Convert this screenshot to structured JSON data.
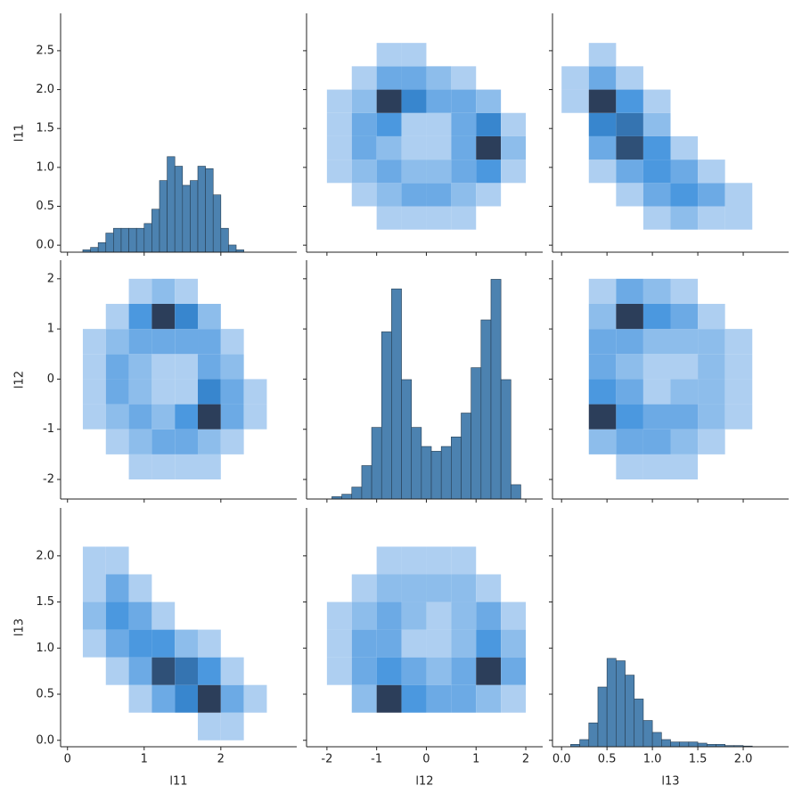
{
  "chart_data": {
    "type": "pairgrid",
    "cmap": [
      "#cfe1f7",
      "#3a8fdc",
      "#2c3e5a"
    ],
    "hist_color": "#4c82b0",
    "hist_edge": "#263d52",
    "variables": [
      {
        "name": "l11",
        "xlim": [
          -0.09,
          2.99
        ],
        "xticks": [
          0,
          1,
          2
        ],
        "ylim": [
          -0.09,
          2.98
        ],
        "yticks": [
          {
            "value": 0,
            "label": "0.0"
          },
          0.5,
          {
            "value": 1,
            "label": "1.0"
          },
          1.5,
          {
            "value": 2,
            "label": "2.0"
          },
          2.5
        ]
      },
      {
        "name": "l12",
        "xlim": [
          -2.41,
          2.34
        ],
        "xticks": [
          -2,
          -1,
          0,
          1,
          2
        ],
        "ylim": [
          -2.39,
          2.37
        ],
        "yticks": [
          -2,
          -1,
          0,
          1,
          2
        ]
      },
      {
        "name": "l13",
        "xlim": [
          -0.1,
          2.5
        ],
        "xticks": [
          {
            "value": 0,
            "label": "0.0"
          },
          0.5,
          {
            "value": 1,
            "label": "1.0"
          },
          1.5,
          {
            "value": 2,
            "label": "2.0"
          }
        ],
        "ylim": [
          -0.07,
          2.52
        ],
        "yticks": [
          {
            "value": 0,
            "label": "0.0"
          },
          0.5,
          {
            "value": 1,
            "label": "1.0"
          },
          1.5,
          {
            "value": 2,
            "label": "2.0"
          }
        ]
      }
    ],
    "panels": [
      [
        {
          "type": "histogram",
          "countlim": [
            0,
            100
          ],
          "bins": [
            0.2,
            0.3,
            0.4,
            0.5,
            0.6,
            0.7,
            0.8,
            0.9,
            1.0,
            1.1,
            1.2,
            1.3,
            1.4,
            1.5,
            1.6,
            1.7,
            1.8,
            1.9,
            2.0,
            2.1,
            2.2,
            2.3
          ],
          "counts": [
            1,
            2,
            4,
            8,
            10,
            10,
            10,
            10,
            12,
            18,
            30,
            40,
            36,
            28,
            30,
            36,
            35,
            24,
            10,
            3,
            1
          ]
        },
        {
          "type": "hist2d",
          "xbins": [
            -2,
            -1.5,
            -1,
            -0.5,
            0,
            0.5,
            1,
            1.5,
            2
          ],
          "ybins": [
            0.2,
            0.5,
            0.8,
            1.1,
            1.4,
            1.7,
            2.0,
            2.3,
            2.6
          ],
          "counts": [
            [
              0,
              0,
              1,
              1,
              1,
              1,
              0,
              0
            ],
            [
              0,
              1,
              2,
              3,
              3,
              2,
              1,
              0
            ],
            [
              1,
              2,
              3,
              2,
              2,
              3,
              4,
              1
            ],
            [
              1,
              3,
              2,
              1,
              1,
              3,
              9,
              2
            ],
            [
              1,
              3,
              4,
              1,
              1,
              3,
              5,
              1
            ],
            [
              1,
              2,
              9,
              5,
              3,
              3,
              2,
              0
            ],
            [
              0,
              1,
              3,
              3,
              2,
              1,
              0,
              0
            ],
            [
              0,
              0,
              1,
              1,
              0,
              0,
              0,
              0
            ]
          ]
        },
        {
          "type": "hist2d",
          "xbins": [
            0,
            0.3,
            0.6,
            0.9,
            1.2,
            1.5,
            1.8,
            2.1,
            2.4
          ],
          "ybins": [
            0.2,
            0.5,
            0.8,
            1.1,
            1.4,
            1.7,
            2.0,
            2.3,
            2.6
          ],
          "counts": [
            [
              0,
              0,
              0,
              1,
              2,
              1,
              1,
              0
            ],
            [
              0,
              0,
              1,
              3,
              4,
              3,
              1,
              0
            ],
            [
              0,
              1,
              3,
              4,
              3,
              1,
              0,
              0
            ],
            [
              0,
              3,
              8,
              4,
              1,
              0,
              0,
              0
            ],
            [
              0,
              5,
              6,
              2,
              0,
              0,
              0,
              0
            ],
            [
              1,
              9,
              4,
              1,
              0,
              0,
              0,
              0
            ],
            [
              1,
              3,
              1,
              0,
              0,
              0,
              0,
              0
            ],
            [
              0,
              1,
              0,
              0,
              0,
              0,
              0,
              0
            ]
          ]
        }
      ],
      [
        {
          "type": "hist2d",
          "xbins": [
            0.2,
            0.5,
            0.8,
            1.1,
            1.4,
            1.7,
            2.0,
            2.3,
            2.6
          ],
          "ybins": [
            -2,
            -1.5,
            -1,
            -0.5,
            0,
            0.5,
            1,
            1.5,
            2
          ],
          "counts": [
            [
              0,
              0,
              1,
              1,
              1,
              1,
              0,
              0
            ],
            [
              0,
              1,
              2,
              3,
              3,
              2,
              1,
              0
            ],
            [
              1,
              2,
              3,
              2,
              4,
              9,
              3,
              1
            ],
            [
              1,
              3,
              2,
              1,
              1,
              5,
              3,
              1
            ],
            [
              1,
              3,
              2,
              1,
              1,
              3,
              2,
              0
            ],
            [
              1,
              2,
              3,
              3,
              3,
              3,
              1,
              0
            ],
            [
              0,
              1,
              4,
              9,
              5,
              2,
              0,
              0
            ],
            [
              0,
              0,
              1,
              2,
              1,
              0,
              0,
              0
            ]
          ]
        },
        {
          "type": "histogram",
          "countlim": [
            0,
            100
          ],
          "bins": [
            -1.9,
            -1.7,
            -1.5,
            -1.3,
            -1.1,
            -0.9,
            -0.7,
            -0.5,
            -0.3,
            -0.1,
            0.1,
            0.3,
            0.5,
            0.7,
            0.9,
            1.1,
            1.3,
            1.5,
            1.7,
            1.9
          ],
          "counts": [
            1,
            2,
            5,
            14,
            30,
            70,
            88,
            50,
            30,
            22,
            20,
            22,
            26,
            36,
            55,
            75,
            92,
            50,
            6
          ]
        },
        {
          "type": "hist2d",
          "xbins": [
            0,
            0.3,
            0.6,
            0.9,
            1.2,
            1.5,
            1.8,
            2.1,
            2.4
          ],
          "ybins": [
            -2,
            -1.5,
            -1,
            -0.5,
            0,
            0.5,
            1,
            1.5,
            2
          ],
          "counts": [
            [
              0,
              0,
              1,
              1,
              1,
              0,
              0,
              0
            ],
            [
              0,
              2,
              3,
              3,
              2,
              1,
              0,
              0
            ],
            [
              0,
              9,
              4,
              3,
              3,
              2,
              1,
              0
            ],
            [
              0,
              4,
              3,
              1,
              2,
              2,
              1,
              0
            ],
            [
              0,
              3,
              2,
              1,
              1,
              2,
              1,
              0
            ],
            [
              0,
              3,
              3,
              2,
              2,
              2,
              1,
              0
            ],
            [
              0,
              2,
              9,
              4,
              3,
              1,
              0,
              0
            ],
            [
              0,
              1,
              3,
              2,
              1,
              0,
              0,
              0
            ]
          ]
        }
      ],
      [
        {
          "type": "hist2d",
          "xbins": [
            0.2,
            0.5,
            0.8,
            1.1,
            1.4,
            1.7,
            2.0,
            2.3,
            2.6
          ],
          "ybins": [
            0,
            0.3,
            0.6,
            0.9,
            1.2,
            1.5,
            1.8,
            2.1,
            2.4
          ],
          "counts": [
            [
              0,
              0,
              0,
              0,
              0,
              1,
              1,
              0
            ],
            [
              0,
              0,
              1,
              3,
              5,
              9,
              3,
              1
            ],
            [
              0,
              1,
              3,
              8,
              6,
              4,
              1,
              0
            ],
            [
              1,
              3,
              4,
              4,
              2,
              1,
              0,
              0
            ],
            [
              2,
              4,
              3,
              1,
              0,
              0,
              0,
              0
            ],
            [
              1,
              3,
              1,
              0,
              0,
              0,
              0,
              0
            ],
            [
              1,
              1,
              0,
              0,
              0,
              0,
              0,
              0
            ],
            [
              0,
              0,
              0,
              0,
              0,
              0,
              0,
              0
            ]
          ]
        },
        {
          "type": "hist2d",
          "xbins": [
            -2,
            -1.5,
            -1,
            -0.5,
            0,
            0.5,
            1,
            1.5,
            2
          ],
          "ybins": [
            0,
            0.3,
            0.6,
            0.9,
            1.2,
            1.5,
            1.8,
            2.1,
            2.4
          ],
          "counts": [
            [
              0,
              0,
              0,
              0,
              0,
              0,
              0,
              0
            ],
            [
              0,
              2,
              9,
              4,
              3,
              3,
              2,
              1
            ],
            [
              1,
              3,
              4,
              3,
              2,
              3,
              9,
              3
            ],
            [
              1,
              3,
              3,
              1,
              1,
              2,
              4,
              2
            ],
            [
              1,
              2,
              3,
              2,
              1,
              2,
              3,
              1
            ],
            [
              0,
              1,
              2,
              2,
              2,
              2,
              1,
              0
            ],
            [
              0,
              0,
              1,
              1,
              1,
              1,
              0,
              0
            ],
            [
              0,
              0,
              0,
              0,
              0,
              0,
              0,
              0
            ]
          ]
        },
        {
          "type": "histogram",
          "countlim": [
            0,
            100
          ],
          "bins": [
            0.1,
            0.2,
            0.3,
            0.4,
            0.5,
            0.6,
            0.7,
            0.8,
            0.9,
            1.0,
            1.1,
            1.2,
            1.3,
            1.4,
            1.5,
            1.6,
            1.7,
            1.8,
            1.9,
            2.0,
            2.1
          ],
          "counts": [
            1,
            3,
            10,
            25,
            37,
            36,
            30,
            20,
            11,
            6,
            3,
            2,
            2,
            2,
            1.5,
            1,
            1,
            0.5,
            0.5,
            0.3
          ]
        }
      ]
    ]
  }
}
